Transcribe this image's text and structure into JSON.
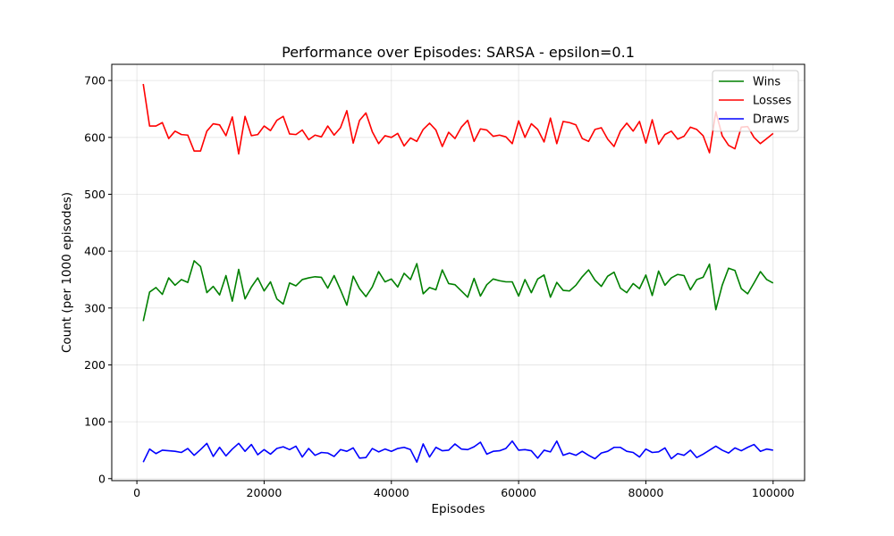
{
  "chart_data": {
    "type": "line",
    "title": "Performance over Episodes: SARSA - epsilon=0.1",
    "xlabel": "Episodes",
    "ylabel": "Count (per 1000 episodes)",
    "xlim": [
      -3950,
      104950
    ],
    "ylim": [
      -3.5,
      728.5
    ],
    "xticks": [
      0,
      20000,
      40000,
      60000,
      80000,
      100000
    ],
    "yticks": [
      0,
      100,
      200,
      300,
      400,
      500,
      600,
      700
    ],
    "grid": true,
    "legend_position": "top-right",
    "x": [
      1000,
      2000,
      3000,
      4000,
      5000,
      6000,
      7000,
      8000,
      9000,
      10000,
      11000,
      12000,
      13000,
      14000,
      15000,
      16000,
      17000,
      18000,
      19000,
      20000,
      21000,
      22000,
      23000,
      24000,
      25000,
      26000,
      27000,
      28000,
      29000,
      30000,
      31000,
      32000,
      33000,
      34000,
      35000,
      36000,
      37000,
      38000,
      39000,
      40000,
      41000,
      42000,
      43000,
      44000,
      45000,
      46000,
      47000,
      48000,
      49000,
      50000,
      51000,
      52000,
      53000,
      54000,
      55000,
      56000,
      57000,
      58000,
      59000,
      60000,
      61000,
      62000,
      63000,
      64000,
      65000,
      66000,
      67000,
      68000,
      69000,
      70000,
      71000,
      72000,
      73000,
      74000,
      75000,
      76000,
      77000,
      78000,
      79000,
      80000,
      81000,
      82000,
      83000,
      84000,
      85000,
      86000,
      87000,
      88000,
      89000,
      90000,
      91000,
      92000,
      93000,
      94000,
      95000,
      96000,
      97000,
      98000,
      99000,
      100000
    ],
    "series": [
      {
        "name": "Wins",
        "color": "#008000",
        "values": [
          277,
          328,
          336,
          324,
          353,
          340,
          350,
          345,
          383,
          373,
          327,
          338,
          323,
          357,
          312,
          368,
          316,
          337,
          353,
          330,
          346,
          316,
          307,
          344,
          339,
          350,
          353,
          355,
          354,
          335,
          357,
          332,
          305,
          356,
          334,
          320,
          337,
          364,
          346,
          351,
          337,
          361,
          350,
          378,
          325,
          336,
          332,
          367,
          343,
          341,
          330,
          319,
          352,
          321,
          341,
          351,
          348,
          346,
          346,
          321,
          350,
          327,
          351,
          358,
          319,
          345,
          331,
          330,
          340,
          355,
          367,
          349,
          338,
          356,
          363,
          335,
          327,
          343,
          334,
          358,
          322,
          365,
          340,
          353,
          359,
          357,
          332,
          350,
          354,
          377,
          297,
          340,
          370,
          366,
          334,
          325,
          344,
          364,
          350,
          344
        ]
      },
      {
        "name": "Losses",
        "color": "#ff0000",
        "values": [
          694,
          620,
          620,
          626,
          598,
          611,
          605,
          604,
          576,
          576,
          611,
          624,
          622,
          603,
          636,
          571,
          637,
          603,
          605,
          620,
          612,
          630,
          637,
          606,
          605,
          613,
          596,
          604,
          601,
          620,
          604,
          617,
          647,
          590,
          630,
          643,
          610,
          589,
          603,
          600,
          607,
          585,
          599,
          593,
          614,
          625,
          613,
          584,
          609,
          598,
          618,
          630,
          593,
          615,
          613,
          602,
          604,
          601,
          589,
          629,
          600,
          624,
          614,
          592,
          634,
          589,
          628,
          626,
          622,
          598,
          593,
          614,
          617,
          597,
          584,
          611,
          625,
          611,
          628,
          590,
          631,
          588,
          605,
          611,
          597,
          602,
          618,
          614,
          603,
          573,
          645,
          603,
          586,
          580,
          618,
          619,
          600,
          589,
          598,
          607
        ]
      },
      {
        "name": "Draws",
        "color": "#0000ff",
        "values": [
          29,
          52,
          44,
          50,
          49,
          48,
          46,
          53,
          41,
          51,
          62,
          39,
          55,
          40,
          52,
          62,
          48,
          60,
          42,
          51,
          43,
          53,
          56,
          51,
          57,
          38,
          53,
          41,
          46,
          45,
          39,
          51,
          48,
          54,
          36,
          37,
          53,
          47,
          52,
          48,
          53,
          55,
          51,
          29,
          61,
          38,
          55,
          49,
          50,
          61,
          52,
          51,
          56,
          64,
          43,
          48,
          49,
          53,
          66,
          50,
          51,
          49,
          36,
          50,
          47,
          66,
          41,
          45,
          41,
          48,
          41,
          35,
          45,
          48,
          55,
          55,
          48,
          46,
          38,
          52,
          46,
          47,
          54,
          35,
          44,
          41,
          50,
          37,
          43,
          50,
          57,
          50,
          45,
          54,
          49,
          55,
          60,
          48,
          52,
          50
        ]
      }
    ]
  }
}
